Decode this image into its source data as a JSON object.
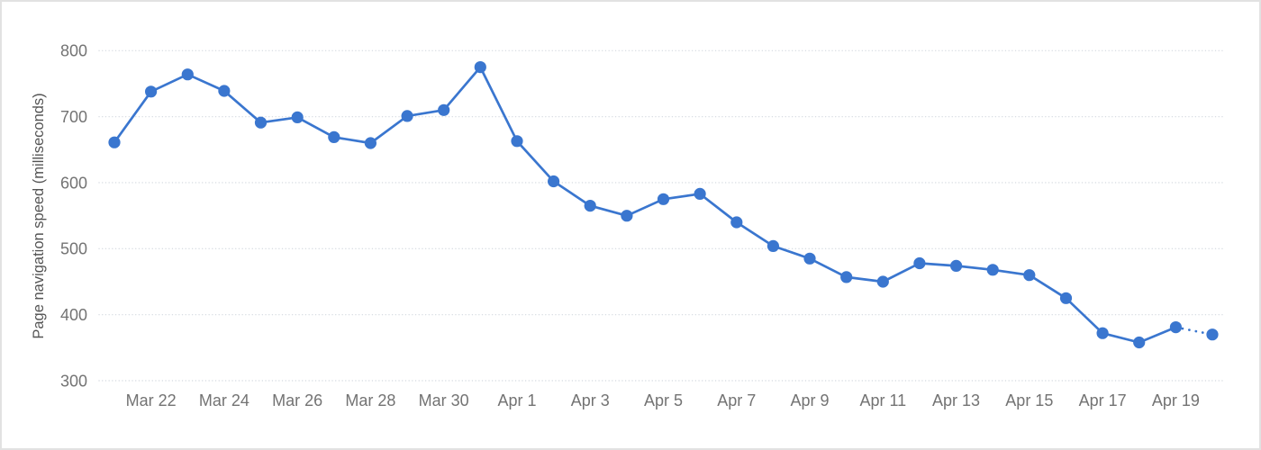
{
  "window": {
    "background": "#ffffff",
    "border_color": "#e2e2e2"
  },
  "chart_data": {
    "type": "line",
    "title": "",
    "xlabel": "",
    "ylabel": "Page navigation speed (milliseconds)",
    "x": [
      "Mar 21",
      "Mar 22",
      "Mar 23",
      "Mar 24",
      "Mar 25",
      "Mar 26",
      "Mar 27",
      "Mar 28",
      "Mar 29",
      "Mar 30",
      "Mar 31",
      "Apr 1",
      "Apr 2",
      "Apr 3",
      "Apr 4",
      "Apr 5",
      "Apr 6",
      "Apr 7",
      "Apr 8",
      "Apr 9",
      "Apr 10",
      "Apr 11",
      "Apr 12",
      "Apr 13",
      "Apr 14",
      "Apr 15",
      "Apr 16",
      "Apr 17",
      "Apr 18",
      "Apr 19",
      "Apr 20"
    ],
    "values": [
      661,
      738,
      764,
      739,
      691,
      699,
      669,
      660,
      701,
      710,
      775,
      663,
      602,
      565,
      550,
      575,
      583,
      540,
      504,
      485,
      457,
      450,
      478,
      474,
      468,
      460,
      425,
      372,
      358,
      381,
      370
    ],
    "x_tick_indices": [
      1,
      3,
      5,
      7,
      9,
      11,
      13,
      15,
      17,
      19,
      21,
      23,
      25,
      27,
      29
    ],
    "x_tick_labels": [
      "Mar 22",
      "Mar 24",
      "Mar 26",
      "Mar 28",
      "Mar 30",
      "Apr 1",
      "Apr 3",
      "Apr 5",
      "Apr 7",
      "Apr 9",
      "Apr 11",
      "Apr 13",
      "Apr 15",
      "Apr 17",
      "Apr 19"
    ],
    "y_ticks": [
      300,
      400,
      500,
      600,
      700,
      800
    ],
    "ylim": [
      300,
      800
    ],
    "grid": "horizontal-dotted",
    "legend": "none",
    "last_segment_style": "dotted",
    "line_color": "#3a76cf",
    "marker_color": "#3a76cf",
    "gridline_color": "#d7dce2",
    "tick_label_color": "#737373",
    "axis_title_color": "#545454"
  }
}
